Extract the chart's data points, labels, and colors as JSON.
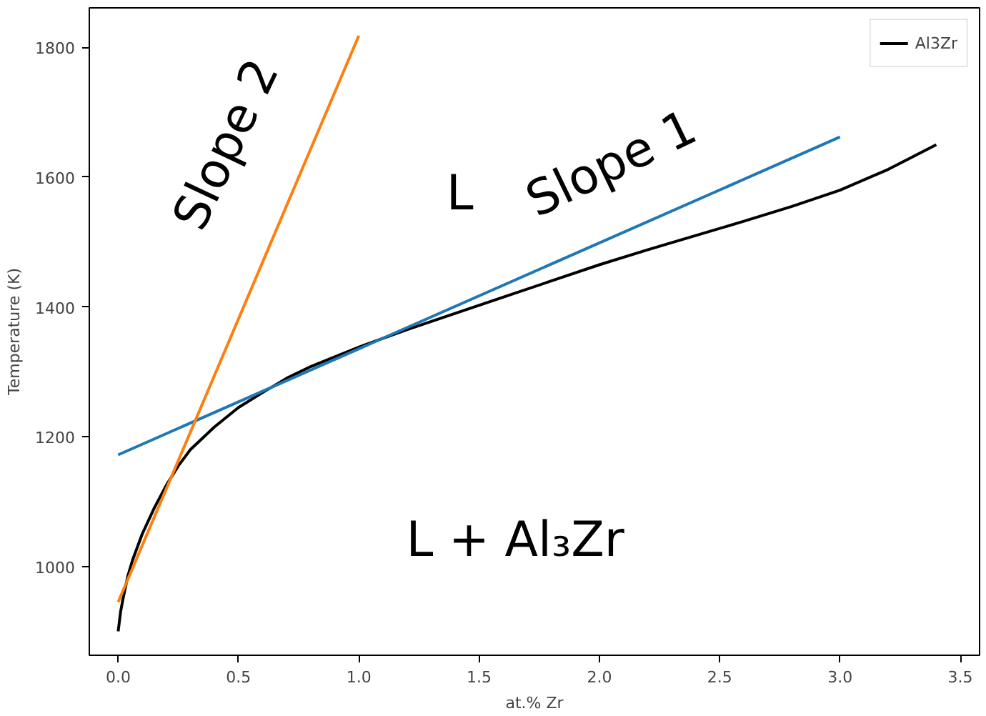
{
  "chart_data": {
    "type": "line",
    "xlabel": "at.% Zr",
    "ylabel": "Temperature (K)",
    "xlim": [
      -0.12,
      3.58
    ],
    "ylim": [
      863,
      1861
    ],
    "xticks": [
      {
        "value": 0,
        "label": "0.0"
      },
      {
        "value": 0.5,
        "label": "0.5"
      },
      {
        "value": 1,
        "label": "1.0"
      },
      {
        "value": 1.5,
        "label": "1.5"
      },
      {
        "value": 2,
        "label": "2.0"
      },
      {
        "value": 2.5,
        "label": "2.5"
      },
      {
        "value": 3,
        "label": "3.0"
      },
      {
        "value": 3.5,
        "label": "3.5"
      }
    ],
    "yticks": [
      1000,
      1200,
      1400,
      1600,
      1800
    ],
    "grid": false,
    "legend": "top right",
    "series": [
      {
        "name": "Al3Zr",
        "color": "#000000",
        "x": [
          0,
          0.01,
          0.02,
          0.04,
          0.06,
          0.08,
          0.1,
          0.15,
          0.2,
          0.25,
          0.3,
          0.4,
          0.5,
          0.6,
          0.7,
          0.8,
          1.0,
          1.2,
          1.4,
          1.6,
          1.8,
          2.0,
          2.2,
          2.4,
          2.6,
          2.8,
          3.0,
          3.2,
          3.4
        ],
        "values": [
          900,
          930,
          950,
          985,
          1010,
          1030,
          1050,
          1090,
          1125,
          1155,
          1180,
          1215,
          1245,
          1268,
          1290,
          1308,
          1338,
          1365,
          1390,
          1415,
          1440,
          1465,
          1488,
          1510,
          1532,
          1555,
          1580,
          1612,
          1650
        ]
      },
      {
        "color": "#1f77b4",
        "x": [
          0,
          3
        ],
        "values": [
          1172,
          1662
        ]
      },
      {
        "color": "#ff7f0e",
        "x": [
          0,
          1
        ],
        "values": [
          945,
          1818
        ]
      }
    ],
    "annotations": [
      "Slope 2",
      "Slope 1",
      "L",
      "L + Al₃Zr"
    ]
  }
}
